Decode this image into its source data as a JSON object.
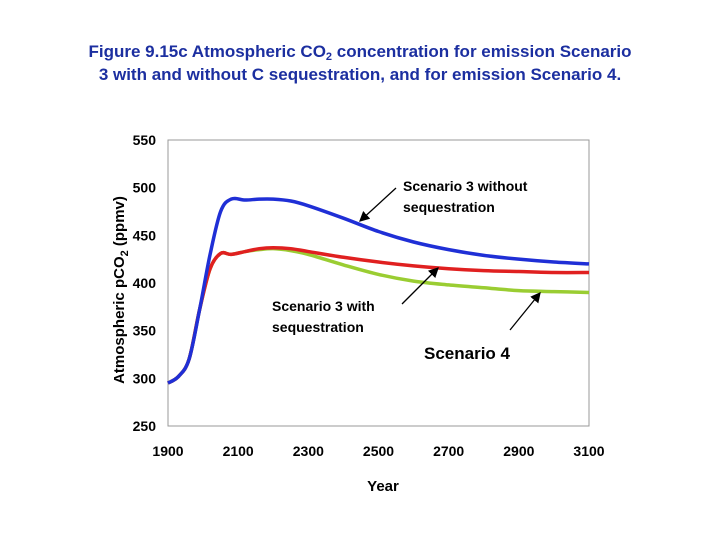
{
  "title": {
    "line1_pre": "Figure 9.15c Atmospheric CO",
    "line1_sub": "2",
    "line1_post": " concentration for emission Scenario",
    "line2": "3 with and without C sequestration, and for emission Scenario 4."
  },
  "chart_data": {
    "type": "line",
    "xlabel": "Year",
    "ylabel_pre": "Atmospheric pCO",
    "ylabel_sub": "2",
    "ylabel_post": " (ppmv)",
    "xlim": [
      1900,
      3100
    ],
    "ylim": [
      250,
      550
    ],
    "xticks": [
      1900,
      2100,
      2300,
      2500,
      2700,
      2900,
      3100
    ],
    "yticks": [
      250,
      300,
      350,
      400,
      450,
      500,
      550
    ],
    "grid": false,
    "legend": "none",
    "series": [
      {
        "color": "#1f2fd6",
        "x": [
          1900,
          1930,
          1960,
          1990,
          2020,
          2050,
          2080,
          2120,
          2160,
          2200,
          2250,
          2300,
          2400,
          2500,
          2600,
          2700,
          2800,
          2900,
          3000,
          3100
        ],
        "y": [
          295,
          302,
          320,
          372,
          430,
          475,
          488,
          487,
          488,
          488,
          486,
          481,
          468,
          454,
          443,
          435,
          429,
          425,
          422,
          420
        ]
      },
      {
        "color": "#e02020",
        "x": [
          1900,
          1930,
          1960,
          1990,
          2020,
          2050,
          2080,
          2120,
          2160,
          2200,
          2250,
          2300,
          2400,
          2500,
          2600,
          2700,
          2800,
          2900,
          3000,
          3100
        ],
        "y": [
          295,
          302,
          320,
          372,
          415,
          431,
          430,
          433,
          436,
          437,
          436,
          433,
          427,
          422,
          418,
          415,
          413,
          412,
          411,
          411
        ]
      },
      {
        "color": "#9acd32",
        "x": [
          1900,
          1930,
          1960,
          1990,
          2020,
          2050,
          2080,
          2120,
          2160,
          2200,
          2250,
          2300,
          2400,
          2500,
          2600,
          2700,
          2800,
          2900,
          3000,
          3100
        ],
        "y": [
          295,
          302,
          320,
          372,
          415,
          431,
          430,
          433,
          435,
          436,
          434,
          430,
          419,
          409,
          402,
          398,
          395,
          392,
          391,
          390
        ]
      }
    ],
    "annotations": [
      {
        "line1": "Scenario 3 without",
        "line2": "sequestration"
      },
      {
        "line1": "Scenario 3 with",
        "line2": "sequestration"
      },
      {
        "line1": "Scenario 4",
        "line2": ""
      }
    ]
  }
}
